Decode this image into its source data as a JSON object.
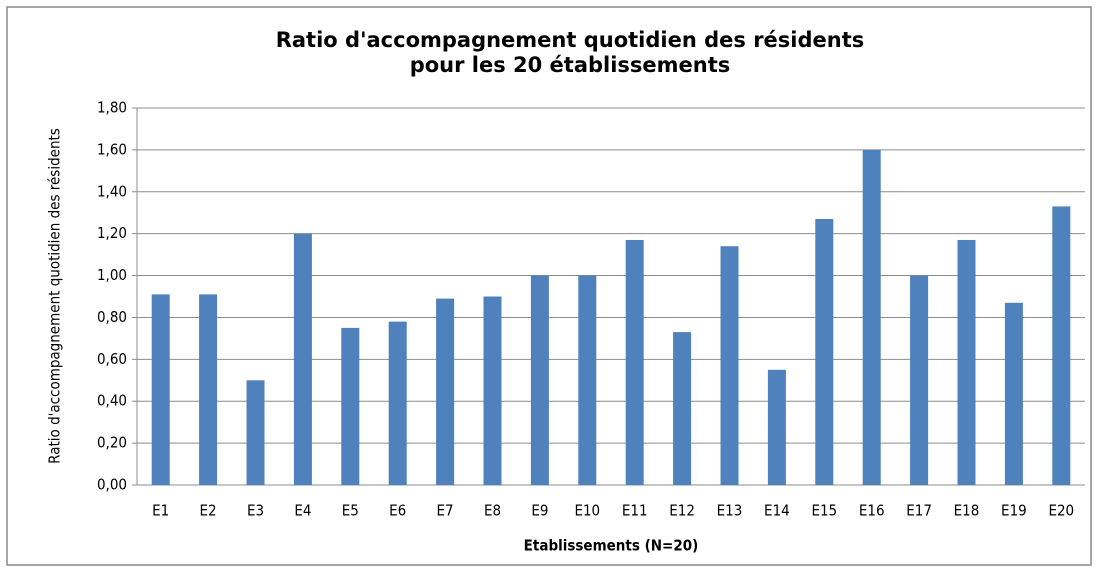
{
  "chart_data": {
    "type": "bar",
    "title": "Ratio d'accompagnement quotidien des résidents pour les 20 établissements",
    "x_label": "Etablissements (N=20)",
    "y_label": "Ratio d'accompagnement quotidien des résidents",
    "categories": [
      "E1",
      "E2",
      "E3",
      "E4",
      "E5",
      "E6",
      "E7",
      "E8",
      "E9",
      "E10",
      "E11",
      "E12",
      "E13",
      "E14",
      "E15",
      "E16",
      "E17",
      "E18",
      "E19",
      "E20"
    ],
    "values": [
      0.91,
      0.91,
      0.5,
      1.2,
      0.75,
      0.78,
      0.89,
      0.9,
      1.0,
      1.0,
      1.17,
      0.73,
      1.14,
      0.55,
      1.27,
      1.6,
      1.0,
      1.17,
      0.87,
      1.33
    ],
    "color": "#4f81bd",
    "ylim": [
      0,
      1.8
    ],
    "yticks": [
      {
        "value": 0,
        "label": "0,00"
      },
      {
        "value": 0.2,
        "label": "0,20"
      },
      {
        "value": 0.4,
        "label": "0,40"
      },
      {
        "value": 0.6,
        "label": "0,60"
      },
      {
        "value": 0.8,
        "label": "0,80"
      },
      {
        "value": 1.0,
        "label": "1,00"
      },
      {
        "value": 1.2,
        "label": "1,20"
      },
      {
        "value": 1.4,
        "label": "1,40"
      },
      {
        "value": 1.6,
        "label": "1,60"
      },
      {
        "value": 1.8,
        "label": "1,80"
      }
    ],
    "grid": true
  }
}
